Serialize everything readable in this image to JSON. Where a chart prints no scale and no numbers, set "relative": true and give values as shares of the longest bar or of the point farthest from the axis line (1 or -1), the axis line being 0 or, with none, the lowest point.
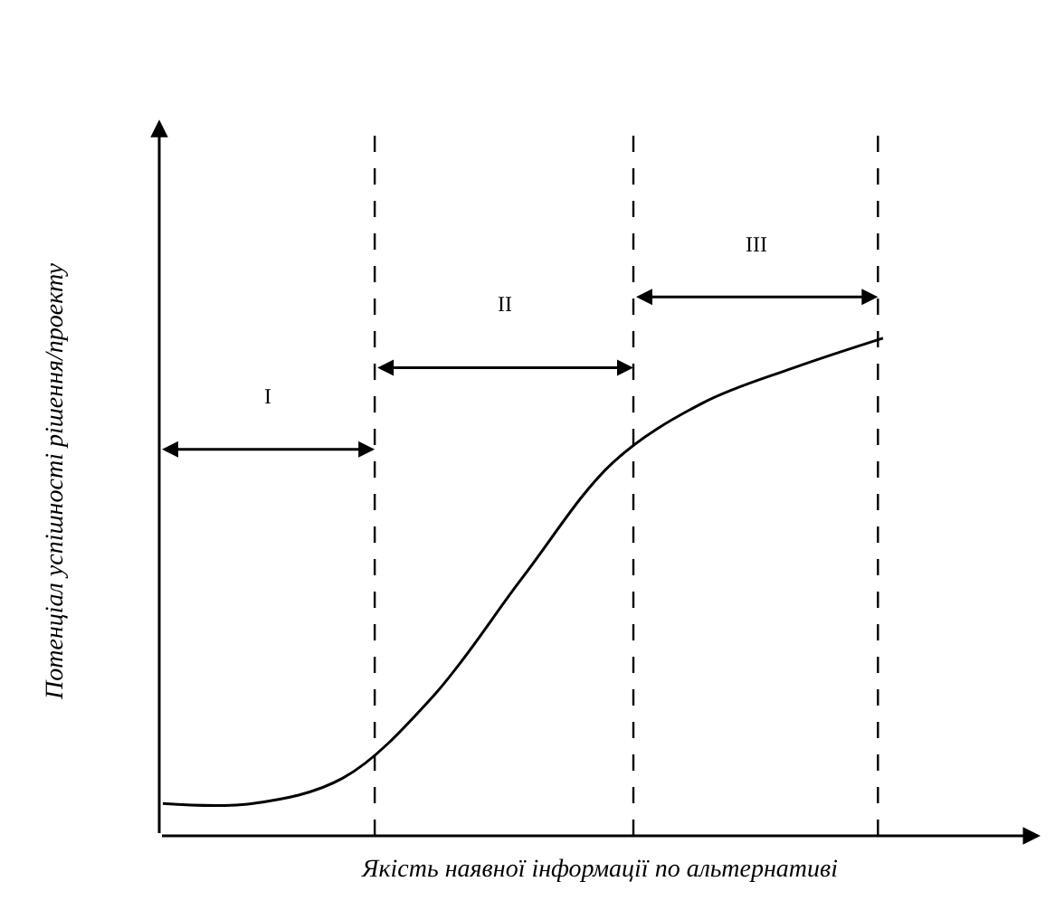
{
  "chart_data": {
    "type": "line",
    "relative": true,
    "xlabel": "Якість наявної інформації по альтернативі",
    "ylabel": "Потенціал успішності рішення/проекту",
    "categories": [
      null,
      null,
      null,
      null,
      null,
      null,
      null,
      null,
      null
    ],
    "series": [
      {
        "color": "#000000",
        "values": [
          0.065,
          0.065,
          0.116,
          0.28,
          0.52,
          0.75,
          0.87,
          0.94,
          1
        ]
      }
    ],
    "annotations": [
      "I",
      "II",
      "III"
    ],
    "marker": "none",
    "line_style": "solid",
    "tick_labels": false
  }
}
